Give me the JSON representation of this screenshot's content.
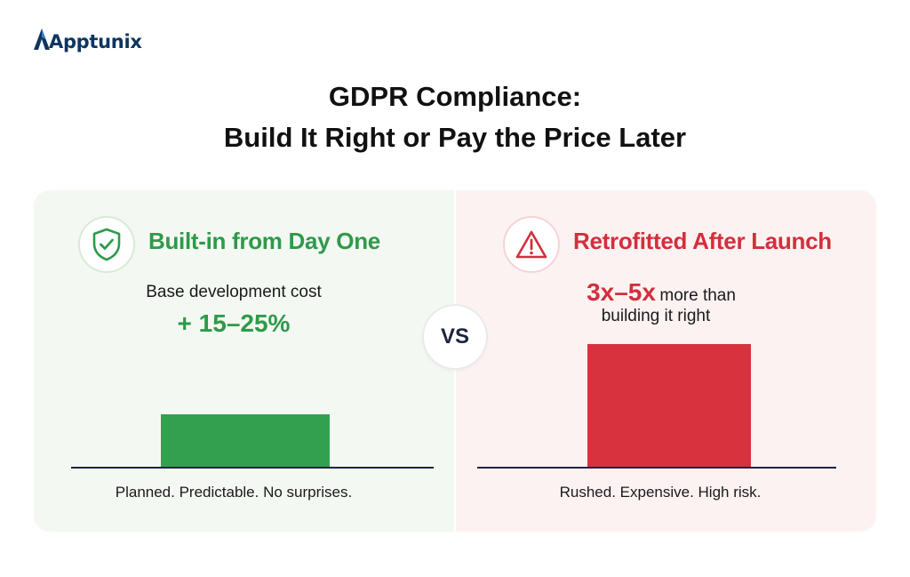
{
  "brand": {
    "name": "Apptunix",
    "color": "#0d3560",
    "icon": "apptunix-logo-icon"
  },
  "title": {
    "line1": "GDPR Compliance:",
    "line2": "Build It Right or Pay the Price Later"
  },
  "left": {
    "icon": "shield-check-icon",
    "heading": "Built-in from Day One",
    "subtext": "Base development cost",
    "highlight": "+ 15–25%",
    "caption": "Planned. Predictable. No surprises.",
    "accent": "#2e9a4a",
    "background": "#f3f8f2"
  },
  "vs": "VS",
  "right": {
    "icon": "warning-triangle-icon",
    "heading": "Retrofitted After Launch",
    "highlight": "3x–5x",
    "subtext_inline": "more than",
    "subtext_line2": "building it right",
    "caption": "Rushed. Expensive. High risk.",
    "accent": "#d32f3d",
    "background": "#fdf2f2"
  }
}
